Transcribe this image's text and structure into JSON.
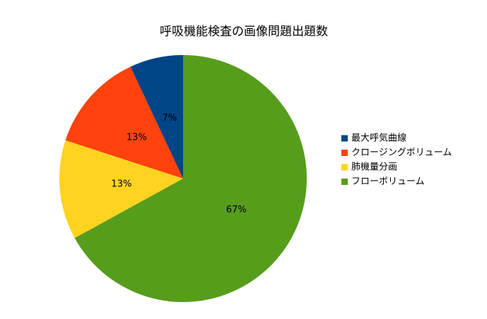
{
  "chart_data": {
    "type": "pie",
    "title": "呼吸機能検査の画像問題出題数",
    "categories": [
      "最大呼気曲線",
      "クロージングボリューム",
      "肺機量分画",
      "フローボリューム"
    ],
    "values": [
      7,
      13,
      13,
      67
    ],
    "value_labels": [
      "7%",
      "13%",
      "13%",
      "67%"
    ],
    "colors": [
      "#004586",
      "#ff420e",
      "#ffd320",
      "#579d1c"
    ],
    "legend": "right"
  }
}
